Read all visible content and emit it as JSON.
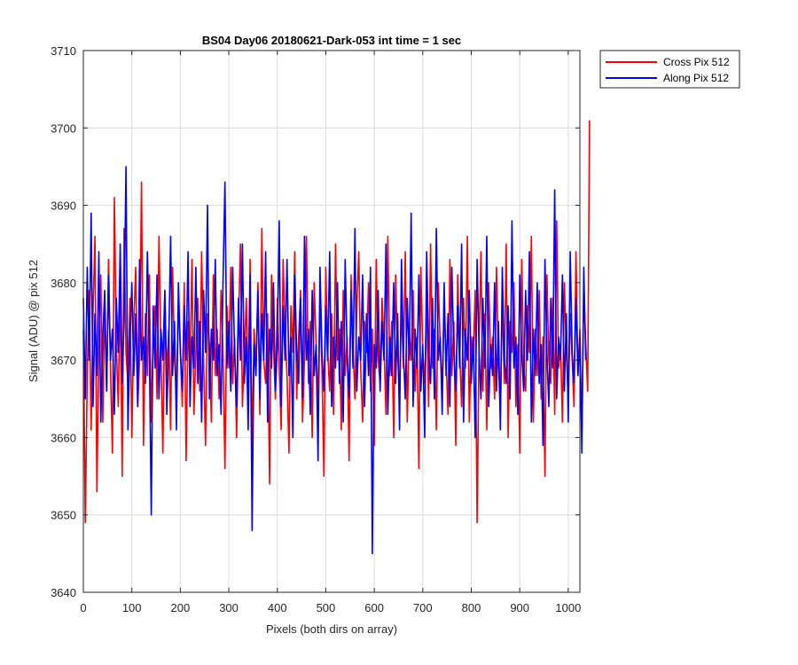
{
  "chart_data": {
    "type": "line",
    "title": "BS04 Day06 20180621-Dark-053 int time = 1 sec",
    "xlabel": "Pixels (both dirs on array)",
    "ylabel": "Signal (ADU) @ pix 512",
    "xlim": [
      0,
      1024
    ],
    "ylim": [
      3640,
      3710
    ],
    "xticks": [
      0,
      100,
      200,
      300,
      400,
      500,
      600,
      700,
      800,
      900,
      1000
    ],
    "yticks": [
      3640,
      3650,
      3660,
      3670,
      3680,
      3690,
      3700,
      3710
    ],
    "grid": true,
    "legend": {
      "placement": "outside-top-right"
    },
    "x_step": 4,
    "series": [
      {
        "name": "Cross Pix 512",
        "color": "#ff0000",
        "values": [
          3674,
          3649,
          3668,
          3679,
          3661,
          3676,
          3686,
          3653,
          3672,
          3681,
          3662,
          3677,
          3666,
          3683,
          3669,
          3658,
          3691,
          3672,
          3664,
          3680,
          3655,
          3687,
          3671,
          3667,
          3678,
          3660,
          3675,
          3682,
          3664,
          3670,
          3693,
          3659,
          3676,
          3668,
          3681,
          3662,
          3673,
          3677,
          3665,
          3686,
          3671,
          3658,
          3679,
          3668,
          3674,
          3661,
          3682,
          3670,
          3666,
          3677,
          3672,
          3664,
          3680,
          3657,
          3675,
          3669,
          3683,
          3663,
          3671,
          3678,
          3666,
          3684,
          3670,
          3659,
          3676,
          3672,
          3662,
          3681,
          3668,
          3674,
          3665,
          3679,
          3671,
          3656,
          3677,
          3669,
          3682,
          3667,
          3673,
          3660,
          3675,
          3685,
          3664,
          3671,
          3678,
          3666,
          3683,
          3658,
          3674,
          3669,
          3680,
          3663,
          3687,
          3670,
          3667,
          3676,
          3654,
          3681,
          3672,
          3665,
          3678,
          3669,
          3661,
          3683,
          3674,
          3668,
          3658,
          3677,
          3671,
          3684,
          3665,
          3673,
          3679,
          3662,
          3670,
          3686,
          3667,
          3675,
          3660,
          3680,
          3672,
          3664,
          3678,
          3669,
          3655,
          3682,
          3671,
          3666,
          3676,
          3663,
          3685,
          3670,
          3674,
          3661,
          3679,
          3668,
          3673,
          3657,
          3681,
          3672,
          3665,
          3677,
          3684,
          3669,
          3662,
          3675,
          3671,
          3680,
          3666,
          3674,
          3659,
          3683,
          3670,
          3667,
          3678,
          3672,
          3663,
          3686,
          3668,
          3675,
          3660,
          3681,
          3671,
          3665,
          3677,
          3669,
          3684,
          3662,
          3674,
          3670,
          3679,
          3666,
          3673,
          3656,
          3682,
          3671,
          3667,
          3678,
          3664,
          3685,
          3669,
          3674,
          3661,
          3680,
          3672,
          3666,
          3677,
          3670,
          3663,
          3683,
          3668,
          3675,
          3659,
          3681,
          3671,
          3664,
          3678,
          3669,
          3686,
          3662,
          3673,
          3670,
          3679,
          3649,
          3672,
          3684,
          3666,
          3676,
          3661,
          3680,
          3669,
          3673,
          3665,
          3682,
          3670,
          3663,
          3678,
          3667,
          3685,
          3660,
          3675,
          3671,
          3680,
          3664,
          3672,
          3658,
          3683,
          3669,
          3666,
          3677,
          3671,
          3686,
          3662,
          3674,
          3668,
          3679,
          3665,
          3673,
          3655,
          3681,
          3670,
          3667,
          3678,
          3663,
          3688,
          3669,
          3672,
          3662,
          3680,
          3671,
          3665,
          3676,
          3670,
          3664,
          3684,
          3668,
          3674,
          3660,
          3679,
          3672,
          3666,
          3701
        ]
      },
      {
        "name": "Along Pix 512",
        "color": "#0000ff",
        "values": [
          3678,
          3665,
          3682,
          3670,
          3689,
          3664,
          3676,
          3668,
          3684,
          3662,
          3673,
          3679,
          3666,
          3681,
          3670,
          3674,
          3663,
          3678,
          3671,
          3685,
          3667,
          3675,
          3695,
          3661,
          3672,
          3680,
          3668,
          3676,
          3664,
          3683,
          3670,
          3673,
          3667,
          3684,
          3672,
          3650,
          3677,
          3669,
          3681,
          3665,
          3674,
          3670,
          3679,
          3663,
          3672,
          3686,
          3668,
          3675,
          3661,
          3680,
          3671,
          3666,
          3677,
          3670,
          3684,
          3664,
          3673,
          3669,
          3682,
          3667,
          3675,
          3662,
          3679,
          3671,
          3690,
          3665,
          3674,
          3670,
          3683,
          3668,
          3672,
          3663,
          3680,
          3693,
          3669,
          3675,
          3666,
          3682,
          3671,
          3664,
          3678,
          3670,
          3685,
          3667,
          3673,
          3661,
          3681,
          3648,
          3672,
          3668,
          3679,
          3665,
          3676,
          3670,
          3684,
          3662,
          3674,
          3669,
          3680,
          3666,
          3672,
          3688,
          3664,
          3677,
          3670,
          3683,
          3668,
          3673,
          3660,
          3681,
          3671,
          3667,
          3678,
          3665,
          3686,
          3670,
          3674,
          3663,
          3679,
          3668,
          3672,
          3657,
          3682,
          3671,
          3666,
          3677,
          3670,
          3684,
          3664,
          3673,
          3669,
          3680,
          3667,
          3675,
          3662,
          3683,
          3671,
          3665,
          3679,
          3669,
          3687,
          3666,
          3673,
          3670,
          3681,
          3664,
          3676,
          3668,
          3682,
          3645,
          3672,
          3669,
          3679,
          3666,
          3675,
          3670,
          3685,
          3663,
          3673,
          3668,
          3680,
          3667,
          3676,
          3661,
          3683,
          3671,
          3665,
          3678,
          3670,
          3689,
          3664,
          3674,
          3669,
          3681,
          3666,
          3672,
          3660,
          3684,
          3671,
          3667,
          3678,
          3665,
          3687,
          3670,
          3673,
          3663,
          3680,
          3668,
          3676,
          3664,
          3682,
          3671,
          3666,
          3677,
          3669,
          3685,
          3662,
          3674,
          3670,
          3679,
          3667,
          3673,
          3660,
          3683,
          3671,
          3665,
          3678,
          3669,
          3686,
          3664,
          3672,
          3668,
          3680,
          3666,
          3675,
          3661,
          3682,
          3670,
          3667,
          3677,
          3665,
          3688,
          3669,
          3673,
          3663,
          3681,
          3671,
          3666,
          3679,
          3670,
          3684,
          3662,
          3674,
          3668,
          3680,
          3667,
          3672,
          3659,
          3683,
          3671,
          3664,
          3678,
          3669,
          3692,
          3665,
          3673,
          3670,
          3681,
          3666,
          3676,
          3662,
          3684,
          3671,
          3667,
          3678,
          3668,
          3673,
          3658,
          3682,
          3670
        ]
      }
    ]
  }
}
